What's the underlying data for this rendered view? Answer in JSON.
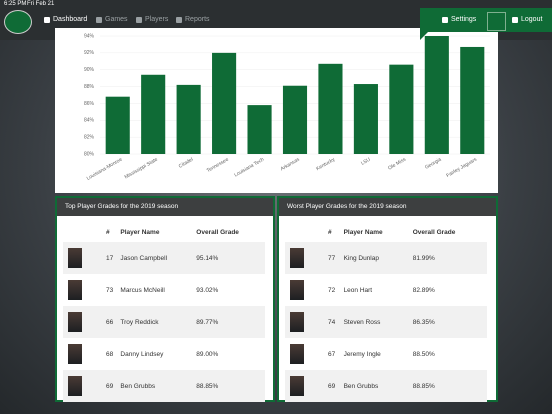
{
  "status": {
    "time": "6:25 PM",
    "date": "Fri Feb 21"
  },
  "nav": {
    "items": [
      "Dashboard",
      "Games",
      "Players",
      "Reports"
    ],
    "settings": "Settings",
    "logout": "Logout"
  },
  "chart_data": {
    "type": "bar",
    "categories": [
      "Louisiana-Monroe",
      "Mississippi State",
      "Citadel",
      "Tennessee",
      "Louisiana Tech",
      "Arkansas",
      "Kentucky",
      "LSU",
      "Ole Miss",
      "Georgia",
      "Fairley Jaguars"
    ],
    "values": [
      86.8,
      89.4,
      88.2,
      92.0,
      85.8,
      88.1,
      90.7,
      88.3,
      90.6,
      94,
      92.7
    ],
    "color": "#0f6b36",
    "ylim": [
      80,
      94
    ],
    "yticks": [
      {
        "value": 80,
        "label": "80%"
      },
      {
        "value": 82,
        "label": "82%"
      },
      {
        "value": 84,
        "label": "84%"
      },
      {
        "value": 86,
        "label": "86%"
      },
      {
        "value": 88,
        "label": "88%"
      },
      {
        "value": 90,
        "label": "90%"
      },
      {
        "value": 92,
        "label": "92%"
      },
      {
        "value": 94,
        "label": "94%"
      }
    ],
    "grid": true
  },
  "tables": [
    {
      "title": "Top Player Grades for the 2019 season",
      "headers": [
        "#",
        "Player Name",
        "Overall Grade"
      ],
      "rows": [
        [
          "17",
          "Jason Campbell",
          "95.14%"
        ],
        [
          "73",
          "Marcus McNeill",
          "93.02%"
        ],
        [
          "66",
          "Troy Reddick",
          "89.77%"
        ],
        [
          "68",
          "Danny Lindsey",
          "89.00%"
        ],
        [
          "69",
          "Ben Grubbs",
          "88.85%"
        ]
      ]
    },
    {
      "title": "Worst Player Grades for the 2019 season",
      "headers": [
        "#",
        "Player Name",
        "Overall Grade"
      ],
      "rows": [
        [
          "77",
          "King Dunlap",
          "81.99%"
        ],
        [
          "72",
          "Leon Hart",
          "82.89%"
        ],
        [
          "74",
          "Steven Ross",
          "86.35%"
        ],
        [
          "67",
          "Jeremy Ingle",
          "88.50%"
        ],
        [
          "69",
          "Ben Grubbs",
          "88.85%"
        ]
      ]
    }
  ]
}
